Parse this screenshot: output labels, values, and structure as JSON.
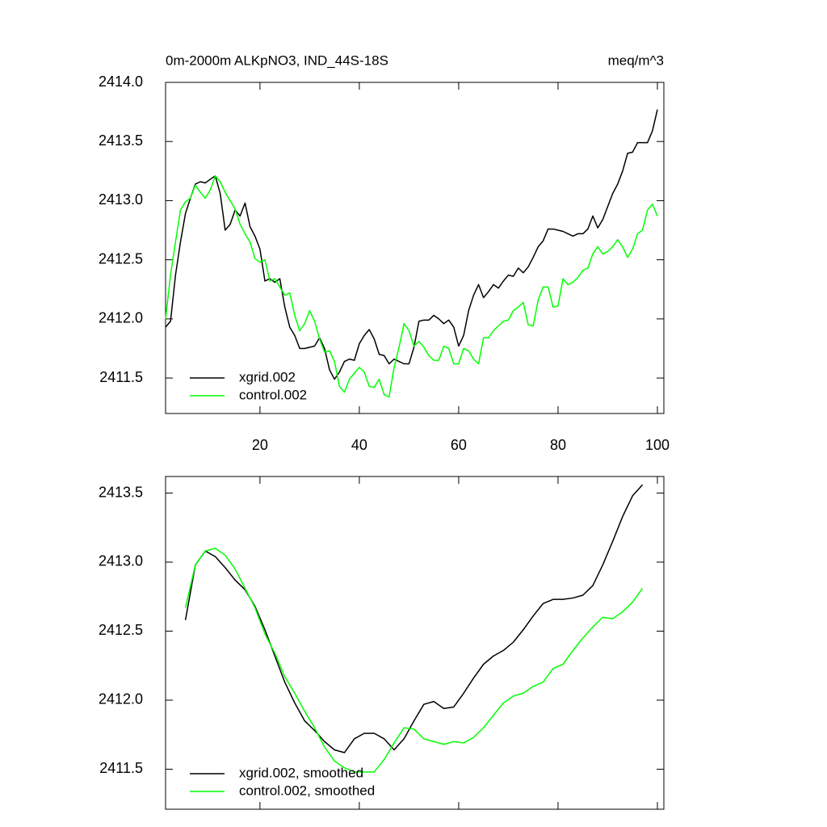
{
  "chart_data": [
    {
      "type": "line",
      "title": "0m-2000m ALKpNO3, IND_44S-18S",
      "right_title": "meq/m^3",
      "x": [
        1,
        2,
        3,
        4,
        5,
        6,
        7,
        8,
        9,
        10,
        11,
        12,
        13,
        14,
        15,
        16,
        17,
        18,
        19,
        20,
        21,
        22,
        23,
        24,
        25,
        26,
        27,
        28,
        29,
        30,
        31,
        32,
        33,
        34,
        35,
        36,
        37,
        38,
        39,
        40,
        41,
        42,
        43,
        44,
        45,
        46,
        47,
        48,
        49,
        50,
        51,
        52,
        53,
        54,
        55,
        56,
        57,
        58,
        59,
        60,
        61,
        62,
        63,
        64,
        65,
        66,
        67,
        68,
        69,
        70,
        71,
        72,
        73,
        74,
        75,
        76,
        77,
        78,
        79,
        80,
        81,
        82,
        83,
        84,
        85,
        86,
        87,
        88,
        89,
        90,
        91,
        92,
        93,
        94,
        95,
        96,
        97,
        98,
        99,
        100
      ],
      "series": [
        {
          "name": "xgrid.002",
          "color": "#000000",
          "values": [
            2411.93,
            2411.98,
            2412.37,
            2412.65,
            2412.89,
            2413.02,
            2413.14,
            2413.16,
            2413.15,
            2413.18,
            2413.21,
            2413.06,
            2412.75,
            2412.8,
            2412.92,
            2412.87,
            2412.98,
            2412.78,
            2412.7,
            2412.59,
            2412.32,
            2412.34,
            2412.31,
            2412.34,
            2412.1,
            2411.93,
            2411.86,
            2411.75,
            2411.75,
            2411.76,
            2411.77,
            2411.84,
            2411.75,
            2411.57,
            2411.49,
            2411.55,
            2411.64,
            2411.66,
            2411.65,
            2411.79,
            2411.86,
            2411.91,
            2411.83,
            2411.7,
            2411.69,
            2411.62,
            2411.66,
            2411.64,
            2411.62,
            2411.62,
            2411.76,
            2411.98,
            2411.99,
            2411.99,
            2412.03,
            2412.0,
            2411.96,
            2411.99,
            2411.93,
            2411.77,
            2411.86,
            2412.07,
            2412.2,
            2412.29,
            2412.18,
            2412.23,
            2412.29,
            2412.26,
            2412.32,
            2412.37,
            2412.36,
            2412.43,
            2412.39,
            2412.44,
            2412.52,
            2412.61,
            2412.66,
            2412.76,
            2412.76,
            2412.75,
            2412.74,
            2412.72,
            2412.7,
            2412.72,
            2412.72,
            2412.76,
            2412.87,
            2412.77,
            2412.84,
            2412.95,
            2413.06,
            2413.14,
            2413.25,
            2413.4,
            2413.41,
            2413.49,
            2413.49,
            2413.49,
            2413.59,
            2413.77
          ]
        },
        {
          "name": "control.002",
          "color": "#00ff00",
          "values": [
            2412.0,
            2412.37,
            2412.65,
            2412.92,
            2412.99,
            2413.02,
            2413.13,
            2413.07,
            2413.02,
            2413.09,
            2413.21,
            2413.16,
            2413.07,
            2413.0,
            2412.93,
            2412.8,
            2412.72,
            2412.65,
            2412.51,
            2412.48,
            2412.5,
            2412.32,
            2412.34,
            2412.27,
            2412.2,
            2412.22,
            2412.03,
            2411.9,
            2411.96,
            2412.07,
            2411.98,
            2411.83,
            2411.72,
            2411.73,
            2411.64,
            2411.43,
            2411.38,
            2411.49,
            2411.54,
            2411.59,
            2411.55,
            2411.43,
            2411.42,
            2411.49,
            2411.36,
            2411.34,
            2411.59,
            2411.76,
            2411.96,
            2411.9,
            2411.77,
            2411.81,
            2411.76,
            2411.69,
            2411.65,
            2411.65,
            2411.77,
            2411.75,
            2411.62,
            2411.62,
            2411.75,
            2411.73,
            2411.66,
            2411.62,
            2411.84,
            2411.84,
            2411.9,
            2411.94,
            2411.98,
            2411.99,
            2412.07,
            2412.1,
            2412.14,
            2411.95,
            2411.94,
            2412.16,
            2412.27,
            2412.27,
            2412.1,
            2412.11,
            2412.34,
            2412.29,
            2412.31,
            2412.35,
            2412.41,
            2412.43,
            2412.55,
            2412.61,
            2412.55,
            2412.57,
            2412.61,
            2412.67,
            2412.61,
            2412.52,
            2412.59,
            2412.72,
            2412.75,
            2412.92,
            2412.97,
            2412.87
          ]
        }
      ],
      "xlim": [
        1,
        101.3
      ],
      "xticks": [
        20,
        40,
        60,
        80,
        100
      ],
      "xtick_labels_visible": true,
      "ylim": [
        2411.2,
        2414.0
      ],
      "yticks": [
        2411.5,
        {
          "value": 2412.0,
          "label": "2412.0"
        },
        2412.5,
        {
          "value": 2413.0,
          "label": "2413.0"
        },
        2413.5,
        {
          "value": 2414.0,
          "label": "2414.0"
        }
      ],
      "legend": "lower left"
    },
    {
      "type": "line",
      "x": [
        5,
        7,
        9,
        11,
        13,
        15,
        17,
        19,
        21,
        23,
        25,
        27,
        29,
        31,
        33,
        35,
        37,
        39,
        41,
        43,
        45,
        47,
        49,
        51,
        53,
        55,
        57,
        59,
        61,
        63,
        65,
        67,
        69,
        71,
        73,
        75,
        77,
        79,
        81,
        83,
        85,
        87,
        89,
        91,
        93,
        95,
        97
      ],
      "series": [
        {
          "name": "xgrid.002, smoothed",
          "color": "#000000",
          "values": [
            2412.58,
            2412.98,
            2413.08,
            2413.04,
            2412.96,
            2412.87,
            2412.8,
            2412.68,
            2412.51,
            2412.32,
            2412.13,
            2411.98,
            2411.85,
            2411.78,
            2411.7,
            2411.64,
            2411.62,
            2411.72,
            2411.76,
            2411.76,
            2411.72,
            2411.64,
            2411.72,
            2411.85,
            2411.97,
            2411.99,
            2411.94,
            2411.95,
            2412.05,
            2412.16,
            2412.26,
            2412.32,
            2412.36,
            2412.42,
            2412.51,
            2412.61,
            2412.7,
            2412.73,
            2412.73,
            2412.74,
            2412.76,
            2412.83,
            2412.98,
            2413.15,
            2413.33,
            2413.48,
            2413.56
          ]
        },
        {
          "name": "control.002, smoothed",
          "color": "#00ff00",
          "values": [
            2412.67,
            2412.98,
            2413.08,
            2413.1,
            2413.05,
            2412.95,
            2412.81,
            2412.67,
            2412.48,
            2412.34,
            2412.17,
            2412.05,
            2411.92,
            2411.8,
            2411.66,
            2411.56,
            2411.51,
            2411.48,
            2411.48,
            2411.48,
            2411.57,
            2411.69,
            2411.8,
            2411.79,
            2411.72,
            2411.7,
            2411.68,
            2411.7,
            2411.69,
            2411.73,
            2411.8,
            2411.89,
            2411.98,
            2412.03,
            2412.05,
            2412.1,
            2412.13,
            2412.23,
            2412.26,
            2412.36,
            2412.45,
            2412.53,
            2412.6,
            2412.59,
            2412.64,
            2412.71,
            2412.81
          ]
        }
      ],
      "xlim": [
        1,
        101.3
      ],
      "xticks": [
        20,
        40,
        60,
        80,
        100
      ],
      "xtick_labels_visible": false,
      "ylim": [
        2411.21,
        2413.62
      ],
      "yticks": [
        2411.5,
        {
          "value": 2412.0,
          "label": "2412.0"
        },
        2412.5,
        {
          "value": 2413.0,
          "label": "2413.0"
        },
        2413.5
      ],
      "legend": "lower left"
    }
  ]
}
